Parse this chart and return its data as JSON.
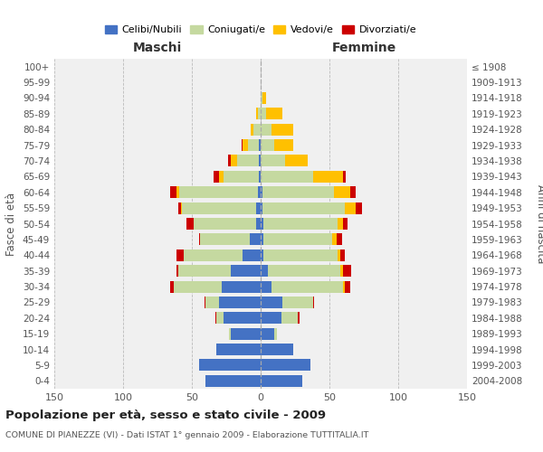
{
  "age_groups": [
    "100+",
    "95-99",
    "90-94",
    "85-89",
    "80-84",
    "75-79",
    "70-74",
    "65-69",
    "60-64",
    "55-59",
    "50-54",
    "45-49",
    "40-44",
    "35-39",
    "30-34",
    "25-29",
    "20-24",
    "15-19",
    "10-14",
    "5-9",
    "0-4"
  ],
  "birth_years": [
    "≤ 1908",
    "1909-1913",
    "1914-1918",
    "1919-1923",
    "1924-1928",
    "1929-1933",
    "1934-1938",
    "1939-1943",
    "1944-1948",
    "1949-1953",
    "1954-1958",
    "1959-1963",
    "1964-1968",
    "1969-1973",
    "1974-1978",
    "1979-1983",
    "1984-1988",
    "1989-1993",
    "1994-1998",
    "1999-2003",
    "2004-2008"
  ],
  "maschi": {
    "celibi": [
      0,
      0,
      0,
      0,
      0,
      1,
      1,
      1,
      2,
      3,
      3,
      8,
      13,
      22,
      28,
      30,
      27,
      22,
      32,
      45,
      40
    ],
    "coniugati": [
      0,
      0,
      0,
      2,
      5,
      8,
      16,
      26,
      57,
      54,
      46,
      36,
      43,
      38,
      35,
      10,
      5,
      1,
      0,
      0,
      0
    ],
    "vedovi": [
      0,
      0,
      0,
      1,
      2,
      4,
      5,
      3,
      2,
      1,
      0,
      0,
      0,
      0,
      0,
      0,
      0,
      0,
      0,
      0,
      0
    ],
    "divorziati": [
      0,
      0,
      0,
      0,
      0,
      1,
      2,
      4,
      5,
      2,
      5,
      1,
      5,
      1,
      3,
      1,
      1,
      0,
      0,
      0,
      0
    ]
  },
  "femmine": {
    "nubili": [
      0,
      0,
      0,
      0,
      0,
      0,
      0,
      0,
      1,
      1,
      2,
      2,
      2,
      5,
      8,
      16,
      15,
      10,
      24,
      36,
      30
    ],
    "coniugate": [
      0,
      0,
      1,
      4,
      8,
      10,
      18,
      38,
      52,
      60,
      54,
      50,
      54,
      53,
      52,
      22,
      12,
      2,
      0,
      0,
      0
    ],
    "vedove": [
      0,
      0,
      3,
      12,
      16,
      14,
      16,
      22,
      12,
      8,
      4,
      3,
      2,
      2,
      1,
      0,
      0,
      0,
      0,
      0,
      0
    ],
    "divorziate": [
      0,
      0,
      0,
      0,
      0,
      0,
      0,
      2,
      4,
      5,
      3,
      4,
      3,
      6,
      4,
      1,
      1,
      0,
      0,
      0,
      0
    ]
  },
  "colors": {
    "celibi_nubili": "#4472c4",
    "coniugati": "#c5d9a0",
    "vedovi": "#ffc000",
    "divorziati": "#cc0000"
  },
  "title": "Popolazione per età, sesso e stato civile - 2009",
  "subtitle": "COMUNE DI PIANEZZE (VI) - Dati ISTAT 1° gennaio 2009 - Elaborazione TUTTITALIA.IT",
  "xlabel_left": "Maschi",
  "xlabel_right": "Femmine",
  "ylabel_left": "Fasce di età",
  "ylabel_right": "Anni di nascita",
  "xlim": 150,
  "legend_labels": [
    "Celibi/Nubili",
    "Coniugati/e",
    "Vedovi/e",
    "Divorziati/e"
  ],
  "background_color": "#ffffff",
  "bar_background": "#f0f0f0"
}
